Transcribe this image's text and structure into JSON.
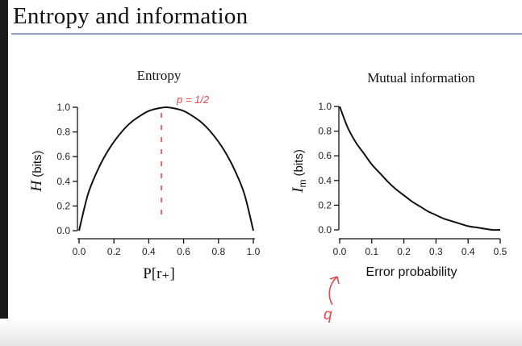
{
  "slide": {
    "title": "Entropy and information"
  },
  "chart_data": [
    {
      "type": "line",
      "title": "Entropy",
      "xlabel": "P[r₊]",
      "ylabel": "H (bits)",
      "xlim": [
        0,
        1
      ],
      "ylim": [
        0,
        1
      ],
      "xticks": [
        "0.0",
        "0.2",
        "0.4",
        "0.6",
        "0.8",
        "1.0"
      ],
      "yticks": [
        "0.0",
        "0.2",
        "0.4",
        "0.6",
        "0.8",
        "1.0"
      ],
      "x": [
        0.0,
        0.05,
        0.1,
        0.15,
        0.2,
        0.25,
        0.3,
        0.35,
        0.4,
        0.45,
        0.5,
        0.55,
        0.6,
        0.65,
        0.7,
        0.75,
        0.8,
        0.85,
        0.9,
        0.95,
        1.0
      ],
      "y": [
        0.0,
        0.29,
        0.47,
        0.61,
        0.72,
        0.81,
        0.88,
        0.93,
        0.97,
        0.99,
        1.0,
        0.99,
        0.97,
        0.93,
        0.88,
        0.81,
        0.72,
        0.61,
        0.47,
        0.29,
        0.0
      ],
      "annotation": "p = 1/2"
    },
    {
      "type": "line",
      "title": "Mutual information",
      "xlabel": "Error probability",
      "ylabel": "Im (bits)",
      "xlim": [
        0,
        0.5
      ],
      "ylim": [
        0,
        1
      ],
      "xticks": [
        "0.0",
        "0.1",
        "0.2",
        "0.3",
        "0.4",
        "0.5"
      ],
      "yticks": [
        "0.0",
        "0.2",
        "0.4",
        "0.6",
        "0.8",
        "1.0"
      ],
      "x": [
        0.0,
        0.025,
        0.05,
        0.075,
        0.1,
        0.125,
        0.15,
        0.175,
        0.2,
        0.225,
        0.25,
        0.275,
        0.3,
        0.325,
        0.35,
        0.375,
        0.4,
        0.425,
        0.45,
        0.475,
        0.5
      ],
      "y": [
        1.0,
        0.83,
        0.71,
        0.62,
        0.53,
        0.46,
        0.39,
        0.33,
        0.28,
        0.23,
        0.19,
        0.15,
        0.12,
        0.09,
        0.07,
        0.05,
        0.03,
        0.02,
        0.01,
        0.0,
        0.0
      ],
      "annotation": "q"
    }
  ]
}
